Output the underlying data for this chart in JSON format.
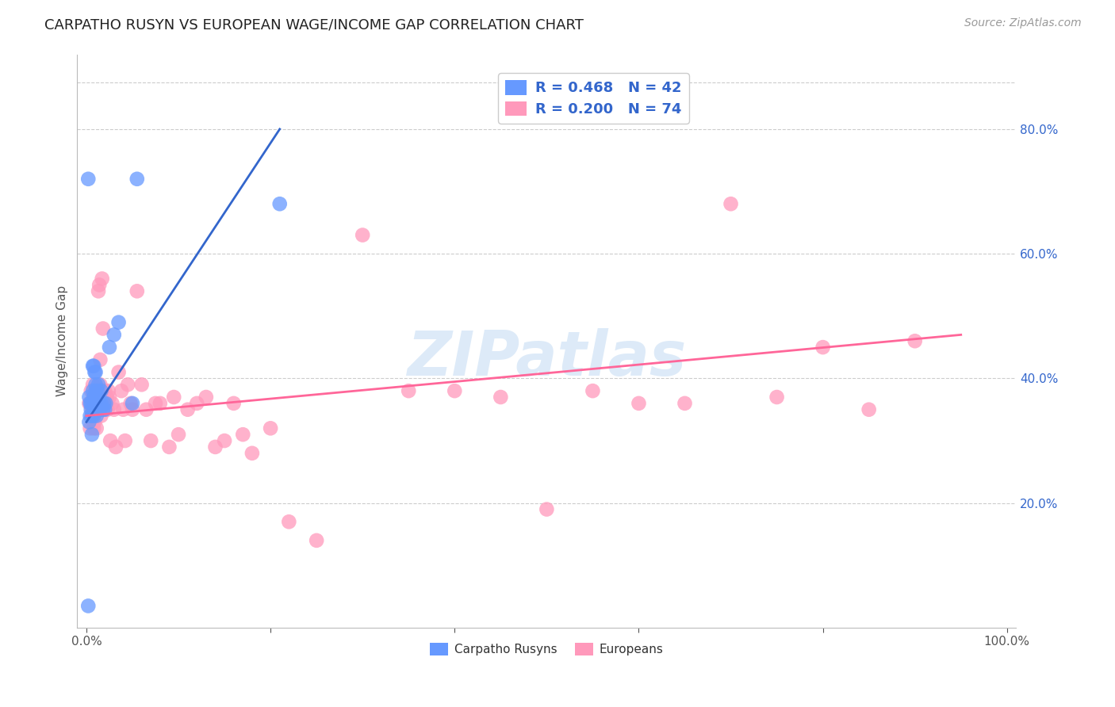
{
  "title": "CARPATHO RUSYN VS EUROPEAN WAGE/INCOME GAP CORRELATION CHART",
  "source": "Source: ZipAtlas.com",
  "ylabel": "Wage/Income Gap",
  "legend_label1": "Carpatho Rusyns",
  "legend_label2": "Europeans",
  "R1": "R = 0.468",
  "N1": "N = 42",
  "R2": "R = 0.200",
  "N2": "N = 74",
  "blue_color": "#6699FF",
  "pink_color": "#FF99BB",
  "blue_line_color": "#3366CC",
  "pink_line_color": "#FF6699",
  "watermark": "ZIPatlas",
  "watermark_color": "#AACCEE",
  "background": "#FFFFFF",
  "grid_color": "#CCCCCC",
  "xlim": [
    -0.01,
    1.01
  ],
  "ylim": [
    0.0,
    0.92
  ],
  "x_ticks": [
    0.0,
    0.2,
    0.4,
    0.6,
    0.8,
    1.0
  ],
  "x_tick_labels": [
    "0.0%",
    "",
    "",
    "",
    "",
    "100.0%"
  ],
  "y_ticks": [
    0.2,
    0.4,
    0.6,
    0.8
  ],
  "y_tick_labels": [
    "20.0%",
    "40.0%",
    "60.0%",
    "80.0%"
  ],
  "blue_line_x": [
    0.0,
    0.21
  ],
  "blue_line_y": [
    0.33,
    0.8
  ],
  "pink_line_x": [
    0.0,
    0.95
  ],
  "pink_line_y": [
    0.34,
    0.47
  ],
  "blue_points_x": [
    0.002,
    0.003,
    0.003,
    0.004,
    0.004,
    0.005,
    0.005,
    0.006,
    0.006,
    0.007,
    0.007,
    0.007,
    0.008,
    0.008,
    0.008,
    0.009,
    0.009,
    0.01,
    0.01,
    0.01,
    0.01,
    0.011,
    0.011,
    0.012,
    0.012,
    0.013,
    0.013,
    0.014,
    0.015,
    0.016,
    0.016,
    0.018,
    0.019,
    0.02,
    0.021,
    0.025,
    0.03,
    0.035,
    0.05,
    0.055,
    0.21,
    0.002
  ],
  "blue_points_y": [
    0.035,
    0.33,
    0.37,
    0.34,
    0.36,
    0.35,
    0.36,
    0.31,
    0.34,
    0.36,
    0.38,
    0.42,
    0.34,
    0.37,
    0.42,
    0.35,
    0.41,
    0.36,
    0.38,
    0.39,
    0.41,
    0.34,
    0.37,
    0.36,
    0.38,
    0.35,
    0.39,
    0.36,
    0.35,
    0.36,
    0.38,
    0.35,
    0.36,
    0.35,
    0.36,
    0.45,
    0.47,
    0.49,
    0.36,
    0.72,
    0.68,
    0.72
  ],
  "pink_points_x": [
    0.003,
    0.004,
    0.005,
    0.006,
    0.007,
    0.007,
    0.008,
    0.008,
    0.009,
    0.009,
    0.01,
    0.01,
    0.011,
    0.011,
    0.012,
    0.012,
    0.013,
    0.014,
    0.015,
    0.015,
    0.016,
    0.016,
    0.017,
    0.018,
    0.019,
    0.02,
    0.022,
    0.023,
    0.024,
    0.025,
    0.026,
    0.028,
    0.03,
    0.032,
    0.035,
    0.038,
    0.04,
    0.042,
    0.045,
    0.048,
    0.05,
    0.055,
    0.06,
    0.065,
    0.07,
    0.075,
    0.08,
    0.09,
    0.095,
    0.1,
    0.11,
    0.12,
    0.13,
    0.14,
    0.15,
    0.16,
    0.17,
    0.18,
    0.2,
    0.22,
    0.25,
    0.3,
    0.35,
    0.4,
    0.45,
    0.5,
    0.55,
    0.6,
    0.65,
    0.7,
    0.75,
    0.8,
    0.85,
    0.9
  ],
  "pink_points_y": [
    0.36,
    0.32,
    0.38,
    0.35,
    0.34,
    0.39,
    0.32,
    0.37,
    0.33,
    0.38,
    0.35,
    0.38,
    0.32,
    0.36,
    0.37,
    0.38,
    0.54,
    0.55,
    0.39,
    0.43,
    0.34,
    0.38,
    0.56,
    0.48,
    0.36,
    0.38,
    0.37,
    0.35,
    0.38,
    0.37,
    0.3,
    0.36,
    0.35,
    0.29,
    0.41,
    0.38,
    0.35,
    0.3,
    0.39,
    0.36,
    0.35,
    0.54,
    0.39,
    0.35,
    0.3,
    0.36,
    0.36,
    0.29,
    0.37,
    0.31,
    0.35,
    0.36,
    0.37,
    0.29,
    0.3,
    0.36,
    0.31,
    0.28,
    0.32,
    0.17,
    0.14,
    0.63,
    0.38,
    0.38,
    0.37,
    0.19,
    0.38,
    0.36,
    0.36,
    0.68,
    0.37,
    0.45,
    0.35,
    0.46
  ]
}
